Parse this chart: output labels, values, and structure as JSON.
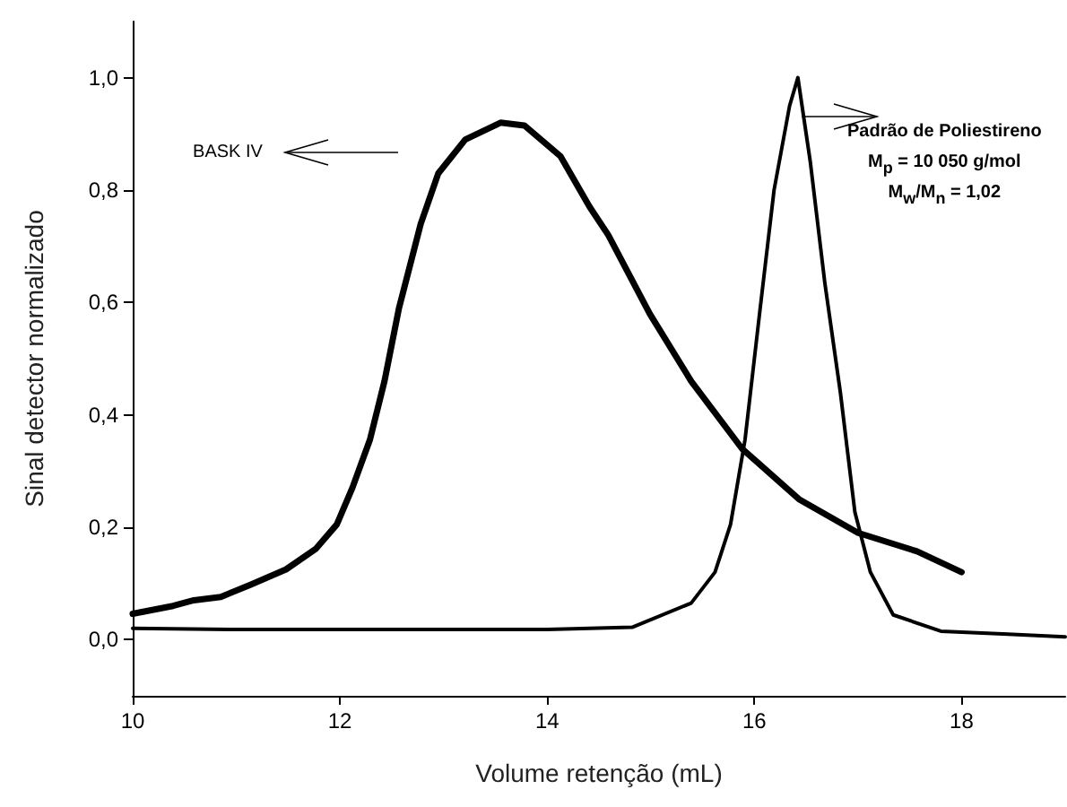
{
  "chart_data": {
    "type": "line",
    "xlabel": "Volume retenção (mL)",
    "ylabel": "Sinal detector normalizado",
    "xlim": [
      10,
      19
    ],
    "xticks": [
      10,
      12,
      14,
      16,
      18
    ],
    "ylim": [
      -0.1,
      1.1
    ],
    "yticks": [
      {
        "value": 0,
        "label": "0,0"
      },
      {
        "value": 0.2,
        "label": "0,2"
      },
      {
        "value": 0.4,
        "label": "0,4"
      },
      {
        "value": 0.6,
        "label": "0,6"
      },
      {
        "value": 0.8,
        "label": "0,8"
      },
      {
        "value": 1.0,
        "label": "1,0"
      }
    ],
    "marker": "none",
    "line_style": "solid",
    "grid": false,
    "series": [
      {
        "color": "#000000",
        "x": [
          10,
          10.39,
          10.59,
          10.85,
          11.14,
          11.48,
          11.77,
          11.97,
          12.12,
          12.29,
          12.43,
          12.57,
          12.78,
          12.95,
          13.21,
          13.55,
          13.78,
          14.13,
          14.41,
          14.59,
          14.99,
          15.39,
          15.88,
          16.43,
          17.0,
          17.57,
          18.0
        ],
        "values": [
          0.046,
          0.06,
          0.07,
          0.076,
          0.098,
          0.125,
          0.162,
          0.205,
          0.27,
          0.356,
          0.46,
          0.59,
          0.74,
          0.83,
          0.89,
          0.92,
          0.915,
          0.86,
          0.77,
          0.72,
          0.58,
          0.46,
          0.34,
          0.25,
          0.19,
          0.157,
          0.12
        ]
      },
      {
        "color": "#000000",
        "x": [
          10,
          11,
          12,
          13,
          14,
          14.82,
          15.39,
          15.62,
          15.77,
          15.91,
          16.05,
          16.19,
          16.34,
          16.42,
          16.54,
          16.68,
          16.83,
          16.97,
          17.12,
          17.34,
          17.8,
          18.4,
          19
        ],
        "values": [
          0.02,
          0.018,
          0.018,
          0.018,
          0.018,
          0.022,
          0.065,
          0.12,
          0.205,
          0.356,
          0.58,
          0.8,
          0.95,
          1.0,
          0.85,
          0.635,
          0.44,
          0.227,
          0.12,
          0.044,
          0.015,
          0.01,
          0.005
        ]
      }
    ],
    "annotations": [
      "BASK IV",
      {
        "text": "Padrão de Poliestireno",
        "x": 16.45,
        "y": 0.93
      },
      "M$_{p}$ = 10 050 g/mol",
      "M$_{w}$/M$_{n}$ = 1,02"
    ]
  }
}
